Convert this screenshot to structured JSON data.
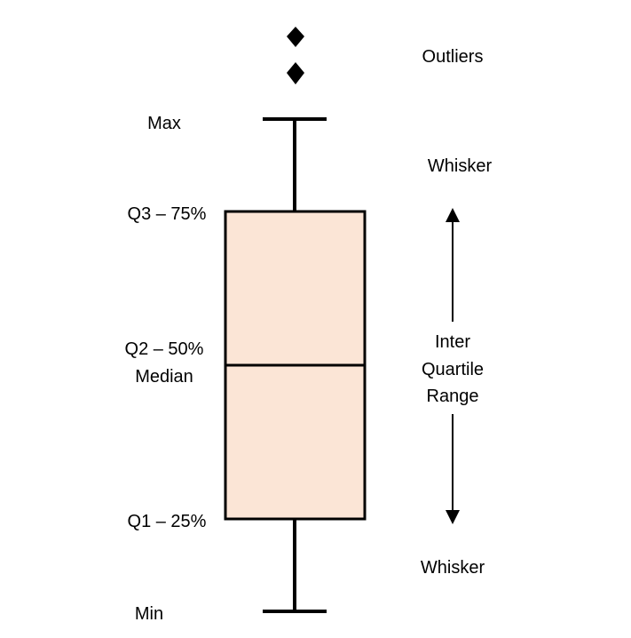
{
  "diagram": {
    "labels": {
      "max": "Max",
      "q3": "Q3 – 75%",
      "q2": "Q2 – 50%",
      "median": "Median",
      "q1": "Q1 – 25%",
      "min": "Min",
      "outliers": "Outliers",
      "whisker_top": "Whisker",
      "whisker_bottom": "Whisker",
      "iqr_line1": "Inter",
      "iqr_line2": "Quartile",
      "iqr_line3": "Range"
    },
    "colors": {
      "box_fill": "#fbe5d6",
      "stroke": "#000000"
    }
  }
}
